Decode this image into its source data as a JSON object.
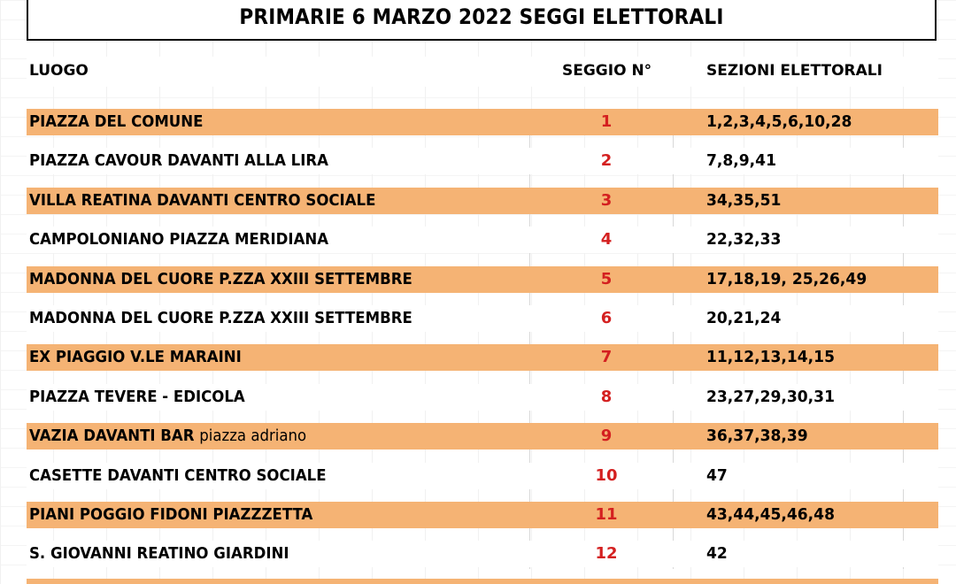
{
  "title": "PRIMARIE 6 MARZO 2022 SEGGI ELETTORALI",
  "columns": {
    "place": "LUOGO",
    "seat": "SEGGIO N°",
    "sections": "SEZIONI ELETTORALI"
  },
  "rows": [
    {
      "place": "PIAZZA DEL COMUNE",
      "place_sub": "",
      "seat": "1",
      "sections": "1,2,3,4,5,6,10,28",
      "highlight": true
    },
    {
      "place": "PIAZZA CAVOUR DAVANTI ALLA LIRA",
      "place_sub": "",
      "seat": "2",
      "sections": "7,8,9,41",
      "highlight": false
    },
    {
      "place": "VILLA REATINA DAVANTI CENTRO SOCIALE",
      "place_sub": "",
      "seat": "3",
      "sections": "34,35,51",
      "highlight": true
    },
    {
      "place": "CAMPOLONIANO PIAZZA MERIDIANA",
      "place_sub": "",
      "seat": "4",
      "sections": "22,32,33",
      "highlight": false
    },
    {
      "place": "MADONNA DEL CUORE P.ZZA XXIII SETTEMBRE",
      "place_sub": "",
      "seat": "5",
      "sections": "17,18,19, 25,26,49",
      "highlight": true
    },
    {
      "place": "MADONNA DEL CUORE P.ZZA XXIII SETTEMBRE",
      "place_sub": "",
      "seat": "6",
      "sections": "20,21,24",
      "highlight": false
    },
    {
      "place": "EX PIAGGIO V.LE MARAINI",
      "place_sub": "",
      "seat": "7",
      "sections": "11,12,13,14,15",
      "highlight": true
    },
    {
      "place": "PIAZZA TEVERE - EDICOLA",
      "place_sub": "",
      "seat": "8",
      "sections": "23,27,29,30,31",
      "highlight": false
    },
    {
      "place": "VAZIA DAVANTI BAR",
      "place_sub": "piazza adriano",
      "seat": "9",
      "sections": "36,37,38,39",
      "highlight": true
    },
    {
      "place": "CASETTE DAVANTI CENTRO SOCIALE",
      "place_sub": "",
      "seat": "10",
      "sections": "47",
      "highlight": false
    },
    {
      "place": "PIANI POGGIO FIDONI PIAZZZETTA",
      "place_sub": "",
      "seat": "11",
      "sections": "43,44,45,46,48",
      "highlight": true
    },
    {
      "place": "S. GIOVANNI REATINO GIARDINI",
      "place_sub": "",
      "seat": "12",
      "sections": "42",
      "highlight": false
    }
  ],
  "colors": {
    "highlight_row": "#f5b374",
    "seat_number": "#d42020"
  }
}
